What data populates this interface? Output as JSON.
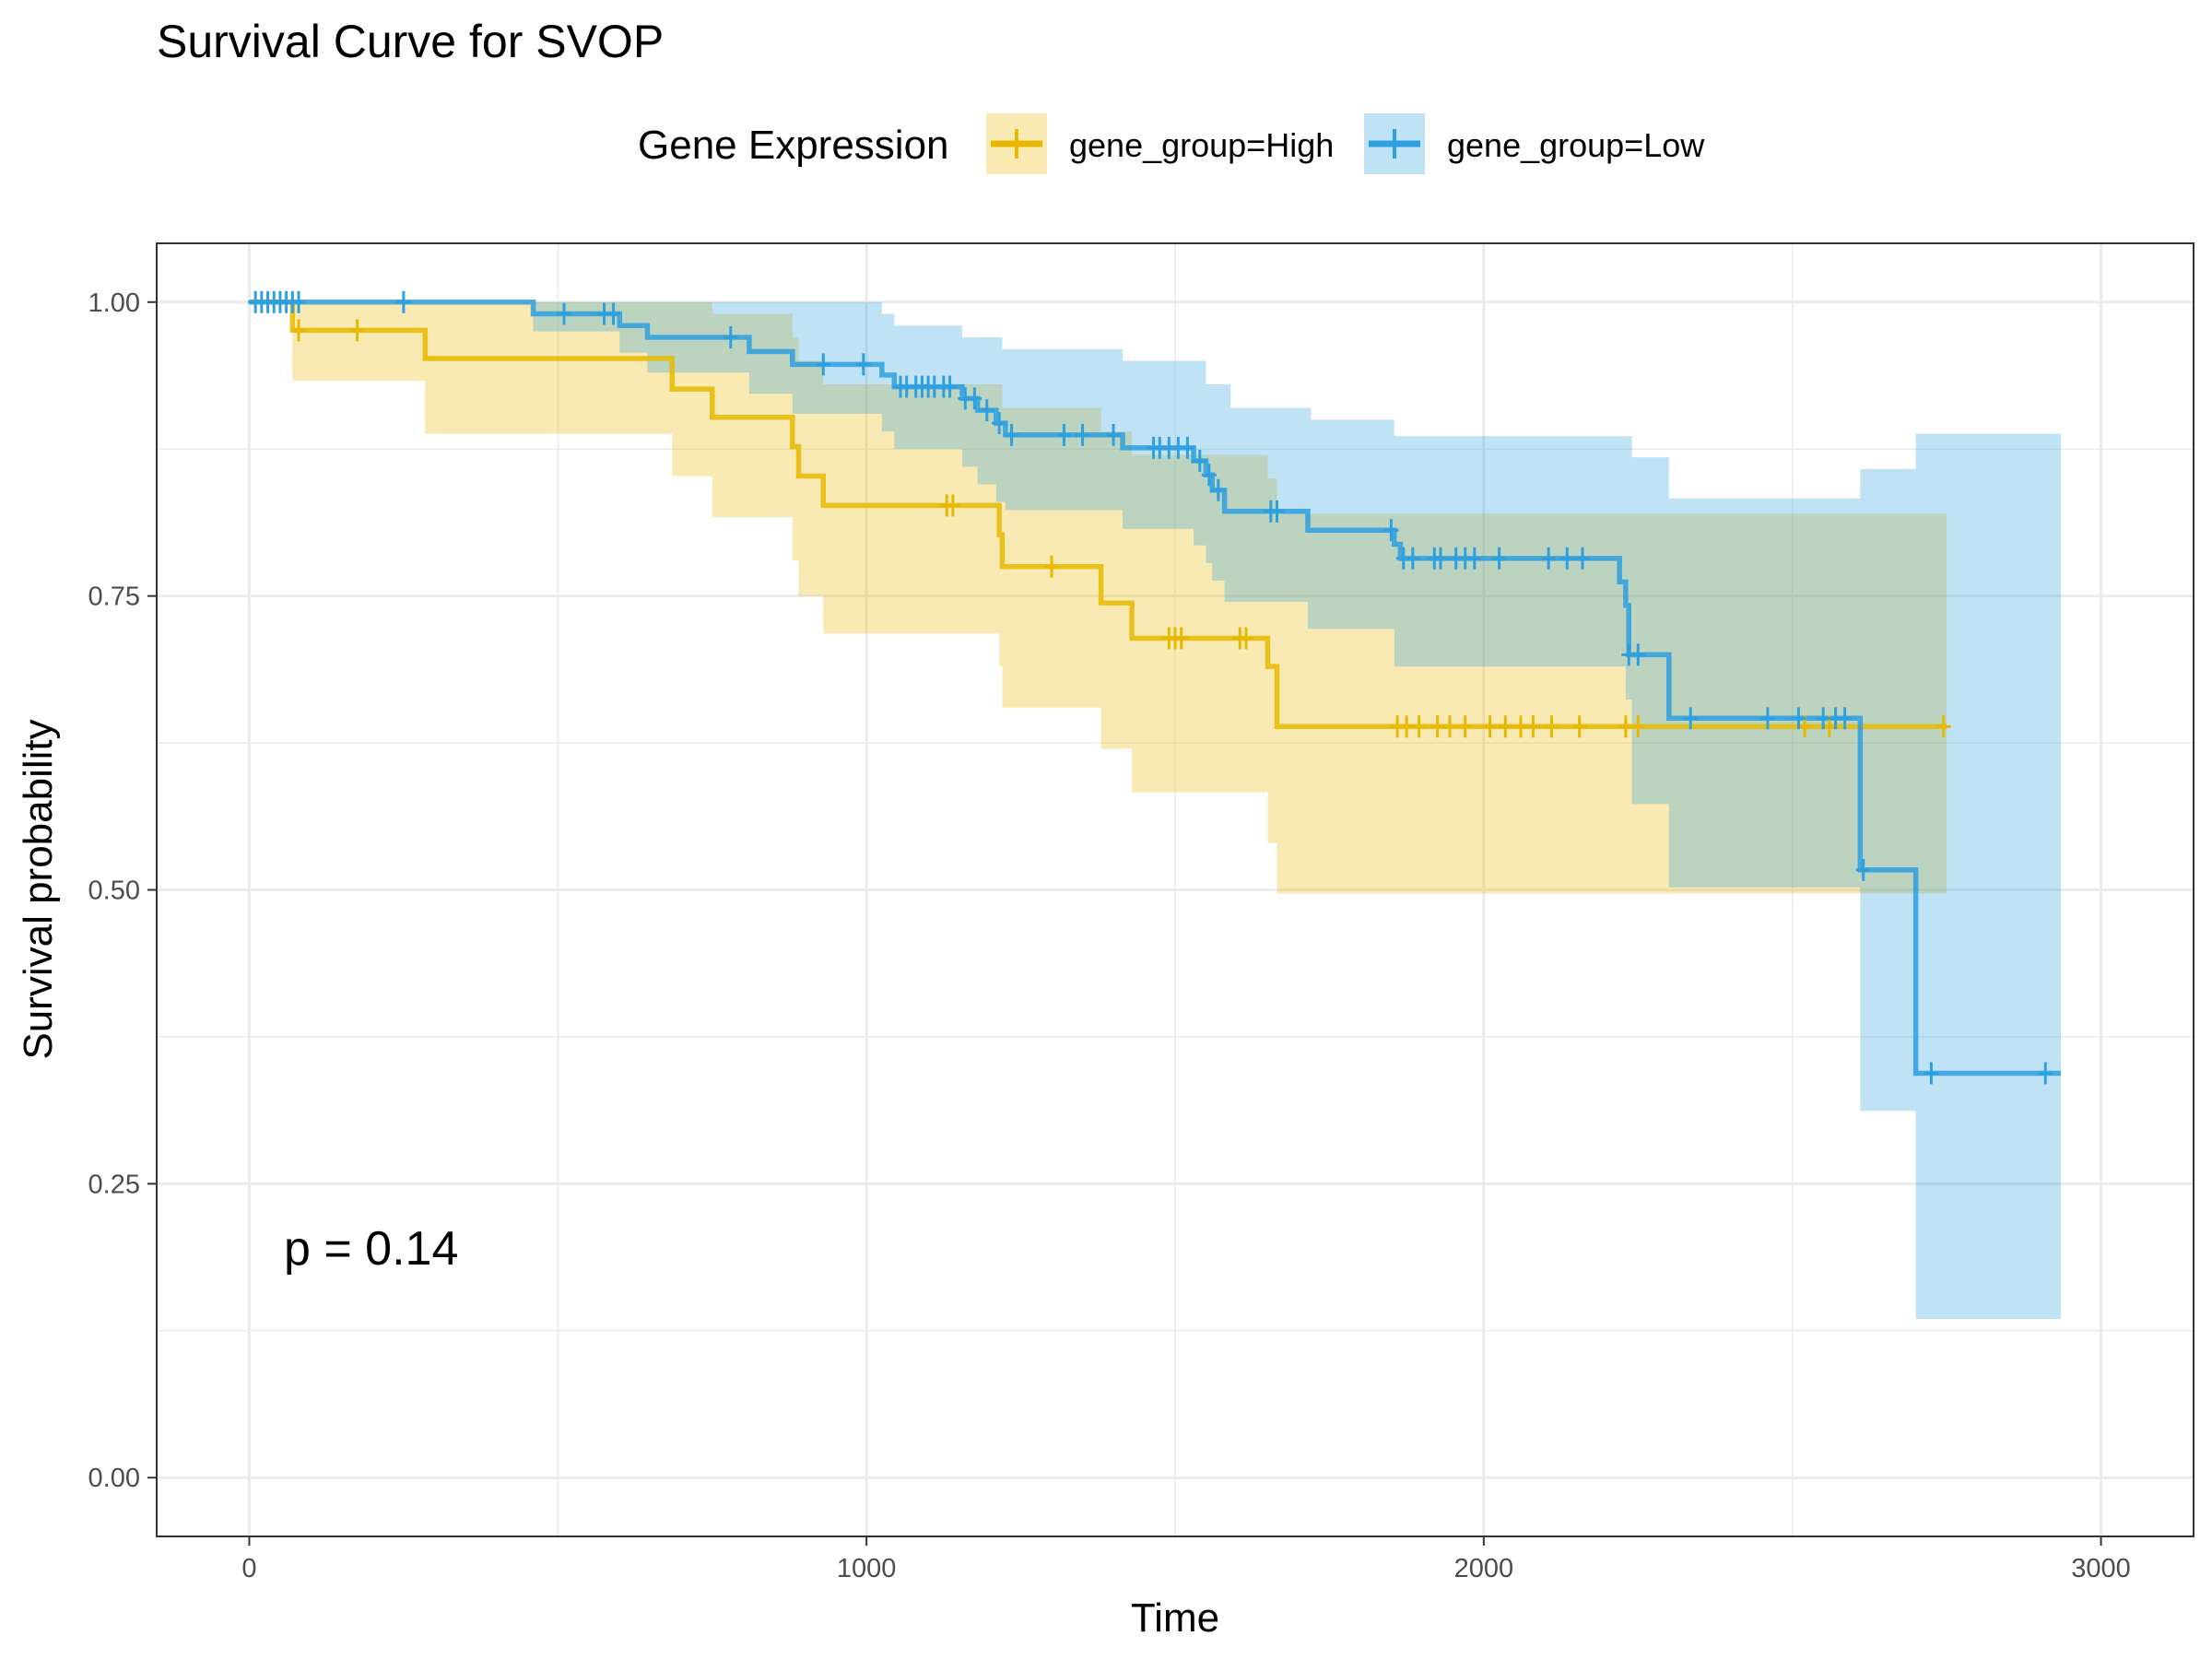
{
  "chart_data": {
    "type": "line",
    "subtype": "kaplan-meier step curves with confidence bands and censor marks",
    "title": "Survival Curve for SVOP",
    "xlabel": "Time",
    "ylabel": "Survival probability",
    "xlim": [
      -150,
      3150
    ],
    "ylim": [
      -0.05,
      1.05
    ],
    "xticks": [
      0,
      1000,
      2000,
      3000
    ],
    "xtick_labels": [
      "0",
      "1000",
      "2000",
      "3000"
    ],
    "yticks": [
      0,
      0.25,
      0.5,
      0.75,
      1.0
    ],
    "ytick_labels": [
      "0.00",
      "0.25",
      "0.50",
      "0.75",
      "1.00"
    ],
    "grid": true,
    "legend": {
      "title": "Gene Expression",
      "position": "top",
      "entries": [
        "gene_group=High",
        "gene_group=Low"
      ]
    },
    "annotation": "p = 0.14",
    "series": [
      {
        "name": "gene_group=High",
        "color": "#E7B800",
        "steps": [
          [
            0,
            1.0
          ],
          [
            70,
            0.976
          ],
          [
            285,
            0.952
          ],
          [
            685,
            0.926
          ],
          [
            750,
            0.902
          ],
          [
            880,
            0.877
          ],
          [
            890,
            0.852
          ],
          [
            930,
            0.827
          ],
          [
            1215,
            0.802
          ],
          [
            1220,
            0.775
          ],
          [
            1380,
            0.744
          ],
          [
            1430,
            0.714
          ],
          [
            1650,
            0.69
          ],
          [
            1665,
            0.639
          ],
          [
            2750,
            0.639
          ]
        ],
        "ci_upper": [
          [
            0,
            1.0
          ],
          [
            70,
            1.0
          ],
          [
            285,
            1.0
          ],
          [
            685,
            1.0
          ],
          [
            750,
            0.99
          ],
          [
            880,
            0.97
          ],
          [
            890,
            0.95
          ],
          [
            930,
            0.93
          ],
          [
            1215,
            0.93
          ],
          [
            1220,
            0.91
          ],
          [
            1380,
            0.89
          ],
          [
            1430,
            0.87
          ],
          [
            1650,
            0.85
          ],
          [
            1665,
            0.82
          ],
          [
            2750,
            0.82
          ]
        ],
        "ci_lower": [
          [
            0,
            1.0
          ],
          [
            70,
            0.933
          ],
          [
            285,
            0.888
          ],
          [
            685,
            0.852
          ],
          [
            750,
            0.817
          ],
          [
            880,
            0.78
          ],
          [
            890,
            0.75
          ],
          [
            930,
            0.718
          ],
          [
            1215,
            0.69
          ],
          [
            1220,
            0.655
          ],
          [
            1380,
            0.62
          ],
          [
            1430,
            0.583
          ],
          [
            1650,
            0.54
          ],
          [
            1665,
            0.497
          ],
          [
            2750,
            0.497
          ]
        ],
        "censor_times": [
          80,
          175,
          1130,
          1140,
          1300,
          1490,
          1500,
          1510,
          1605,
          1615,
          1860,
          1875,
          1895,
          1925,
          1945,
          1970,
          2010,
          2035,
          2060,
          2080,
          2110,
          2155,
          2230,
          2250,
          2520,
          2560,
          2745
        ]
      },
      {
        "name": "gene_group=Low",
        "color": "#2E9FDF",
        "steps": [
          [
            0,
            1.0
          ],
          [
            460,
            0.99
          ],
          [
            600,
            0.98
          ],
          [
            645,
            0.97
          ],
          [
            810,
            0.958
          ],
          [
            880,
            0.947
          ],
          [
            1025,
            0.938
          ],
          [
            1045,
            0.928
          ],
          [
            1155,
            0.918
          ],
          [
            1180,
            0.908
          ],
          [
            1210,
            0.897
          ],
          [
            1225,
            0.887
          ],
          [
            1415,
            0.876
          ],
          [
            1530,
            0.865
          ],
          [
            1550,
            0.853
          ],
          [
            1560,
            0.84
          ],
          [
            1580,
            0.822
          ],
          [
            1715,
            0.806
          ],
          [
            1855,
            0.794
          ],
          [
            1865,
            0.782
          ],
          [
            2220,
            0.762
          ],
          [
            2230,
            0.742
          ],
          [
            2235,
            0.7
          ],
          [
            2300,
            0.646
          ],
          [
            2610,
            0.517
          ],
          [
            2700,
            0.344
          ],
          [
            2935,
            0.344
          ]
        ],
        "ci_upper": [
          [
            0,
            1.0
          ],
          [
            460,
            1.0
          ],
          [
            600,
            1.0
          ],
          [
            645,
            1.0
          ],
          [
            810,
            1.0
          ],
          [
            880,
            1.0
          ],
          [
            1025,
            0.99
          ],
          [
            1045,
            0.98
          ],
          [
            1155,
            0.97
          ],
          [
            1220,
            0.96
          ],
          [
            1415,
            0.95
          ],
          [
            1550,
            0.93
          ],
          [
            1590,
            0.91
          ],
          [
            1720,
            0.9
          ],
          [
            1855,
            0.886
          ],
          [
            2240,
            0.868
          ],
          [
            2300,
            0.833
          ],
          [
            2610,
            0.858
          ],
          [
            2700,
            0.888
          ],
          [
            2935,
            0.888
          ]
        ],
        "ci_lower": [
          [
            0,
            1.0
          ],
          [
            460,
            0.975
          ],
          [
            600,
            0.957
          ],
          [
            645,
            0.94
          ],
          [
            810,
            0.922
          ],
          [
            880,
            0.905
          ],
          [
            1025,
            0.89
          ],
          [
            1045,
            0.875
          ],
          [
            1155,
            0.86
          ],
          [
            1180,
            0.845
          ],
          [
            1210,
            0.83
          ],
          [
            1225,
            0.823
          ],
          [
            1415,
            0.807
          ],
          [
            1530,
            0.793
          ],
          [
            1550,
            0.778
          ],
          [
            1560,
            0.763
          ],
          [
            1580,
            0.745
          ],
          [
            1715,
            0.722
          ],
          [
            1855,
            0.69
          ],
          [
            2230,
            0.662
          ],
          [
            2240,
            0.573
          ],
          [
            2300,
            0.502
          ],
          [
            2610,
            0.312
          ],
          [
            2700,
            0.135
          ],
          [
            2935,
            0.135
          ]
        ],
        "censor_times": [
          10,
          20,
          30,
          40,
          50,
          60,
          70,
          80,
          250,
          510,
          575,
          590,
          780,
          930,
          995,
          1055,
          1065,
          1080,
          1090,
          1100,
          1110,
          1125,
          1135,
          1160,
          1175,
          1195,
          1215,
          1235,
          1320,
          1350,
          1400,
          1465,
          1475,
          1490,
          1505,
          1520,
          1540,
          1555,
          1570,
          1655,
          1665,
          1850,
          1870,
          1885,
          1920,
          1930,
          1955,
          1970,
          1985,
          2025,
          2105,
          2135,
          2160,
          2235,
          2250,
          2335,
          2460,
          2510,
          2550,
          2570,
          2585,
          2615,
          2725,
          2910
        ]
      }
    ]
  }
}
